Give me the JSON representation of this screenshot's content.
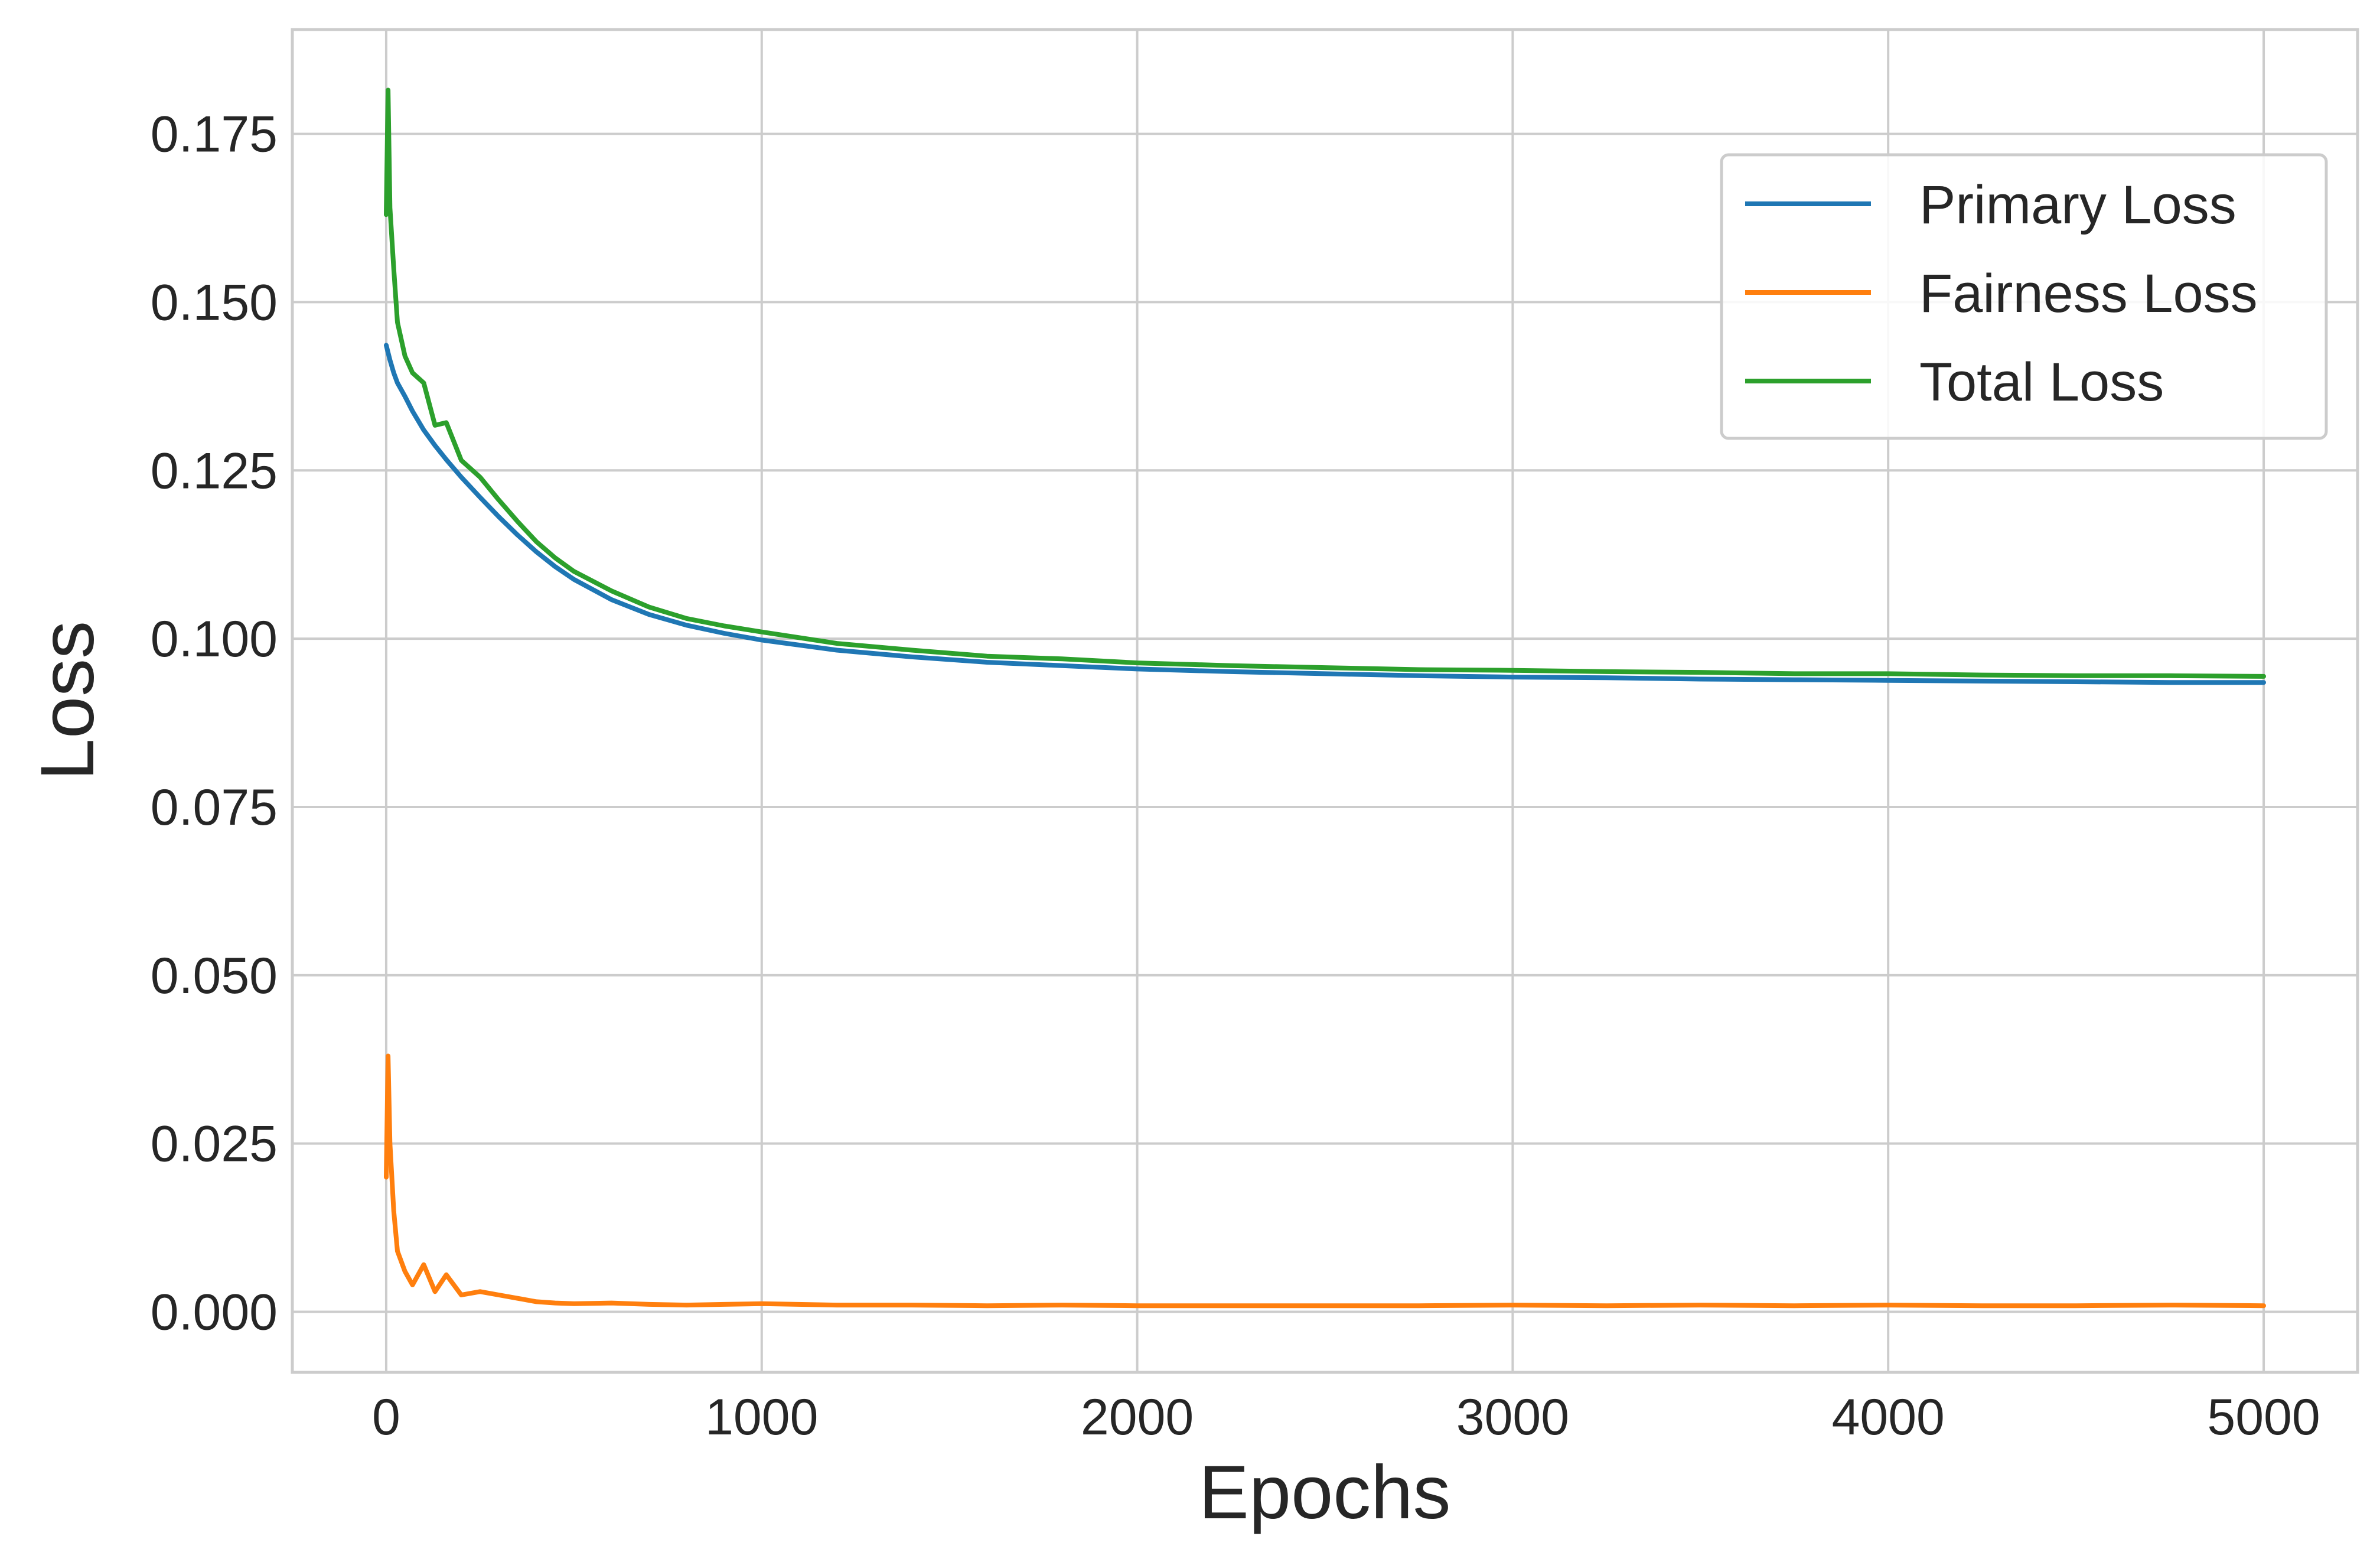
{
  "chart_data": {
    "type": "line",
    "title": "",
    "xlabel": "Epochs",
    "ylabel": "Loss",
    "xlim": [
      -250,
      5250
    ],
    "ylim": [
      -0.009,
      0.1905
    ],
    "xticks": [
      0,
      1000,
      2000,
      3000,
      4000,
      5000
    ],
    "xtick_labels": [
      "0",
      "1000",
      "2000",
      "3000",
      "4000",
      "5000"
    ],
    "yticks": [
      0.0,
      0.025,
      0.05,
      0.075,
      0.1,
      0.125,
      0.15,
      0.175
    ],
    "ytick_labels": [
      "0.000",
      "0.025",
      "0.050",
      "0.075",
      "0.100",
      "0.125",
      "0.150",
      "0.175"
    ],
    "grid": true,
    "legend_position": "upper-right",
    "x": [
      0,
      5,
      10,
      20,
      30,
      50,
      70,
      100,
      130,
      160,
      200,
      250,
      300,
      350,
      400,
      450,
      500,
      600,
      700,
      800,
      900,
      1000,
      1200,
      1400,
      1600,
      1800,
      2000,
      2250,
      2500,
      2750,
      3000,
      3250,
      3500,
      3750,
      4000,
      4250,
      4500,
      4750,
      5000
    ],
    "series": [
      {
        "name": "Primary Loss",
        "color": "#1f77b4",
        "values": [
          0.1436,
          0.1425,
          0.1414,
          0.1395,
          0.138,
          0.136,
          0.1338,
          0.131,
          0.1287,
          0.1266,
          0.124,
          0.121,
          0.1181,
          0.1154,
          0.1129,
          0.1107,
          0.1088,
          0.1058,
          0.1036,
          0.102,
          0.1008,
          0.0998,
          0.0983,
          0.0973,
          0.0965,
          0.096,
          0.0955,
          0.0951,
          0.0948,
          0.0945,
          0.0943,
          0.0942,
          0.094,
          0.0939,
          0.0938,
          0.0937,
          0.0936,
          0.0935,
          0.0935
        ]
      },
      {
        "name": "Fairness Loss",
        "color": "#ff7f0e",
        "values": [
          0.02,
          0.038,
          0.025,
          0.015,
          0.009,
          0.006,
          0.004,
          0.007,
          0.003,
          0.0055,
          0.0025,
          0.003,
          0.0025,
          0.002,
          0.0015,
          0.0013,
          0.0012,
          0.0013,
          0.0011,
          0.001,
          0.0011,
          0.0012,
          0.001,
          0.001,
          0.0009,
          0.001,
          0.0009,
          0.0009,
          0.0009,
          0.0009,
          0.001,
          0.0009,
          0.001,
          0.0009,
          0.001,
          0.0009,
          0.0009,
          0.001,
          0.0009
        ]
      },
      {
        "name": "Total Loss",
        "color": "#2ca02c",
        "values": [
          0.163,
          0.1815,
          0.164,
          0.155,
          0.147,
          0.142,
          0.1395,
          0.138,
          0.1317,
          0.1321,
          0.1265,
          0.124,
          0.1206,
          0.1174,
          0.1144,
          0.112,
          0.11,
          0.1071,
          0.1047,
          0.103,
          0.1019,
          0.101,
          0.0993,
          0.0983,
          0.0974,
          0.097,
          0.0964,
          0.096,
          0.0957,
          0.0954,
          0.0953,
          0.0951,
          0.095,
          0.0948,
          0.0948,
          0.0946,
          0.0945,
          0.0945,
          0.0944
        ]
      }
    ]
  }
}
